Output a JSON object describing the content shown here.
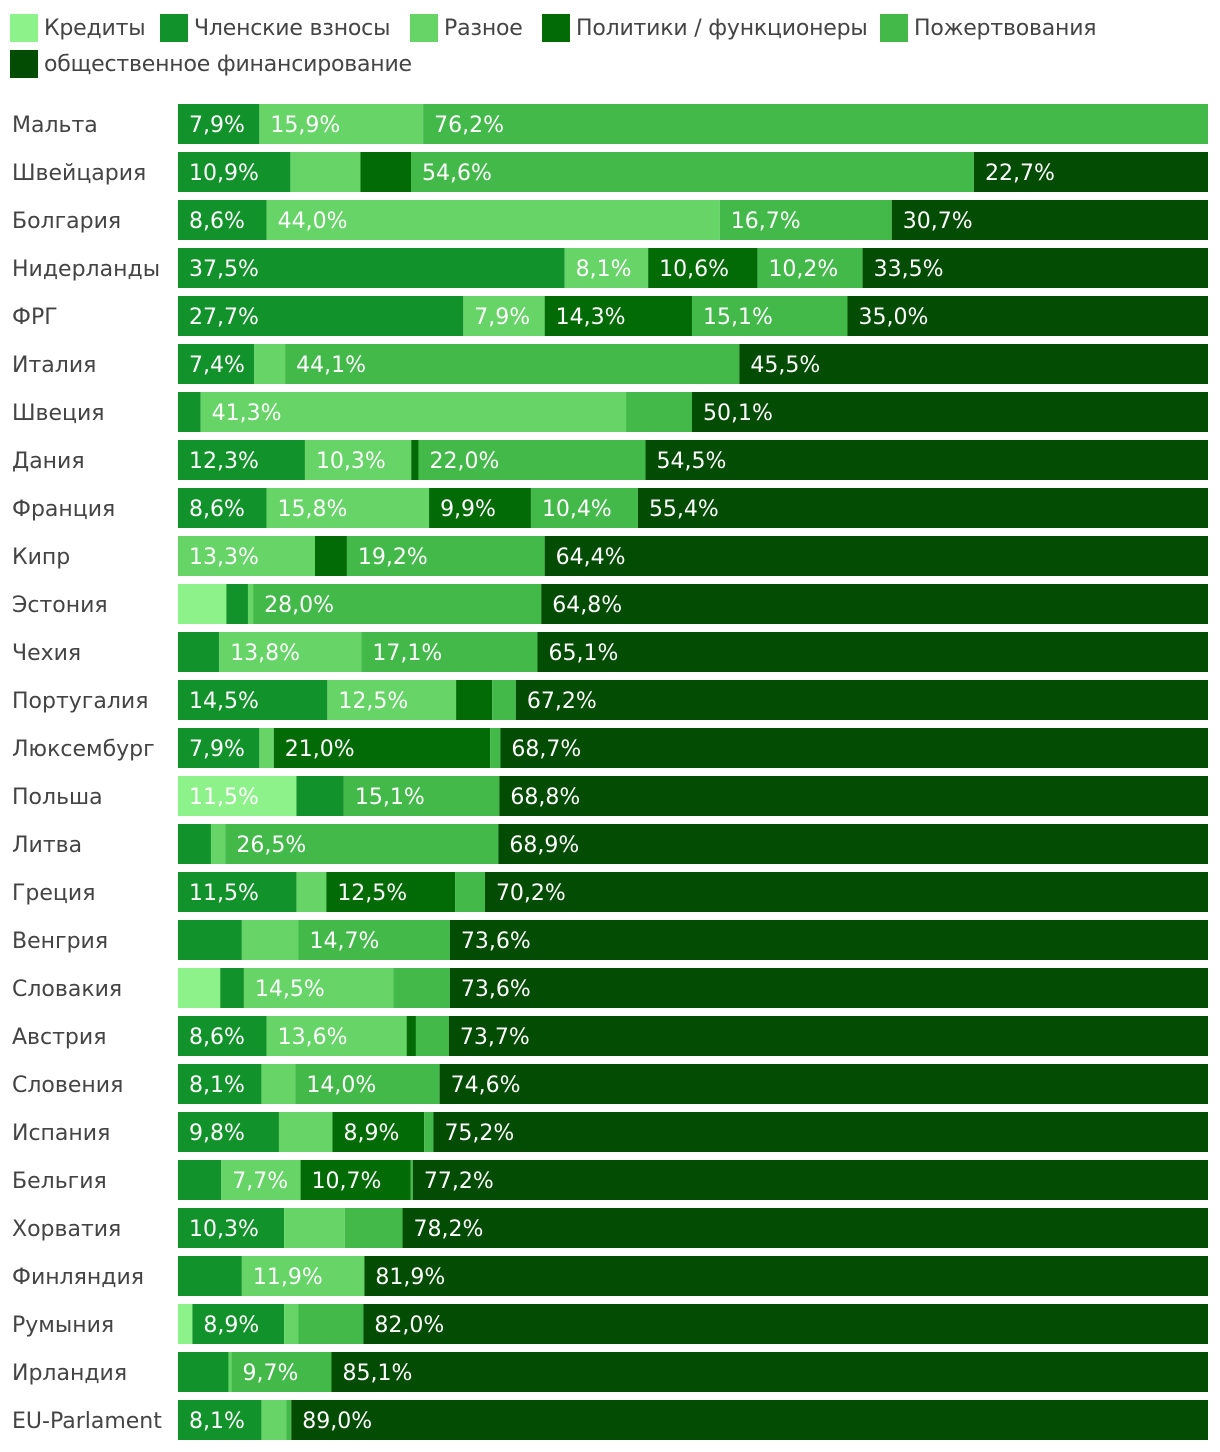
{
  "chart_data": {
    "type": "bar",
    "orientation": "horizontal",
    "stacked": true,
    "unit": "%",
    "legend_position": "top-left",
    "grid": false,
    "xlim": [
      0,
      100
    ],
    "series": [
      {
        "name": "Кредиты",
        "color": "#8ef28a"
      },
      {
        "name": "Членские взносы",
        "color": "#12922a"
      },
      {
        "name": "Разное",
        "color": "#66d466"
      },
      {
        "name": "Политики / функционеры",
        "color": "#036b06"
      },
      {
        "name": "Пожертвования",
        "color": "#43b94a"
      },
      {
        "name": "общественное финансирование",
        "color": "#034c03"
      }
    ],
    "rows": [
      {
        "country": "Мальта",
        "values": [
          0,
          7.9,
          15.9,
          0,
          76.2,
          0
        ],
        "labels": [
          "",
          "7,9%",
          "15,9%",
          "",
          "76,2%",
          ""
        ]
      },
      {
        "country": "Швейцария",
        "values": [
          0,
          10.9,
          6.8,
          4.9,
          54.6,
          22.7
        ],
        "labels": [
          "",
          "10,9%",
          "",
          "",
          "54,6%",
          "22,7%"
        ]
      },
      {
        "country": "Болгария",
        "values": [
          0,
          8.6,
          44.0,
          0,
          16.7,
          30.7
        ],
        "labels": [
          "",
          "8,6%",
          "44,0%",
          "",
          "16,7%",
          "30,7%"
        ]
      },
      {
        "country": "Нидерланды",
        "values": [
          0,
          37.5,
          8.1,
          10.6,
          10.2,
          33.5
        ],
        "labels": [
          "",
          "37,5%",
          "8,1%",
          "10,6%",
          "10,2%",
          "33,5%"
        ]
      },
      {
        "country": "ФРГ",
        "values": [
          0,
          27.7,
          7.9,
          14.3,
          15.1,
          35.0
        ],
        "labels": [
          "",
          "27,7%",
          "7,9%",
          "14,3%",
          "15,1%",
          "35,0%"
        ]
      },
      {
        "country": "Италия",
        "values": [
          0,
          7.4,
          3.0,
          0,
          44.1,
          45.5
        ],
        "labels": [
          "",
          "7,4%",
          "",
          "",
          "44,1%",
          "45,5%"
        ]
      },
      {
        "country": "Швеция",
        "values": [
          0,
          2.2,
          41.3,
          0,
          6.4,
          50.1
        ],
        "labels": [
          "",
          "",
          "41,3%",
          "",
          "",
          "50,1%"
        ]
      },
      {
        "country": "Дания",
        "values": [
          0,
          12.3,
          10.3,
          0.7,
          22.0,
          54.5
        ],
        "labels": [
          "",
          "12,3%",
          "10,3%",
          "",
          "22,0%",
          "54,5%"
        ]
      },
      {
        "country": "Франция",
        "values": [
          0,
          8.6,
          15.8,
          9.9,
          10.4,
          55.4
        ],
        "labels": [
          "",
          "8,6%",
          "15,8%",
          "9,9%",
          "10,4%",
          "55,4%"
        ]
      },
      {
        "country": "Кипр",
        "values": [
          0,
          0,
          13.3,
          3.1,
          19.2,
          64.4
        ],
        "labels": [
          "",
          "",
          "13,3%",
          "",
          "19,2%",
          "64,4%"
        ]
      },
      {
        "country": "Эстония",
        "values": [
          4.7,
          2.1,
          0.5,
          0,
          28.0,
          64.8
        ],
        "labels": [
          "",
          "",
          "",
          "",
          "28,0%",
          "64,8%"
        ]
      },
      {
        "country": "Чехия",
        "values": [
          0,
          4.0,
          13.8,
          0,
          17.1,
          65.1
        ],
        "labels": [
          "",
          "",
          "13,8%",
          "",
          "17,1%",
          "65,1%"
        ]
      },
      {
        "country": "Португалия",
        "values": [
          0,
          14.5,
          12.5,
          3.5,
          2.3,
          67.2
        ],
        "labels": [
          "",
          "14,5%",
          "12,5%",
          "",
          "",
          "67,2%"
        ]
      },
      {
        "country": "Люксембург",
        "values": [
          0,
          7.9,
          1.4,
          21.0,
          1.0,
          68.7
        ],
        "labels": [
          "",
          "7,9%",
          "",
          "21,0%",
          "",
          "68,7%"
        ]
      },
      {
        "country": "Польша",
        "values": [
          11.5,
          4.6,
          0,
          0,
          15.1,
          68.8
        ],
        "labels": [
          "11,5%",
          "",
          "",
          "",
          "15,1%",
          "68,8%"
        ]
      },
      {
        "country": "Литва",
        "values": [
          0,
          3.2,
          1.4,
          0,
          26.5,
          68.9
        ],
        "labels": [
          "",
          "",
          "",
          "",
          "26,5%",
          "68,9%"
        ]
      },
      {
        "country": "Греция",
        "values": [
          0,
          11.5,
          2.9,
          12.5,
          2.9,
          70.2
        ],
        "labels": [
          "",
          "11,5%",
          "",
          "12,5%",
          "",
          "70,2%"
        ]
      },
      {
        "country": "Венгрия",
        "values": [
          0,
          6.2,
          5.5,
          0,
          14.7,
          73.6
        ],
        "labels": [
          "",
          "",
          "",
          "",
          "14,7%",
          "73,6%"
        ]
      },
      {
        "country": "Словакия",
        "values": [
          4.1,
          2.3,
          14.5,
          0,
          5.5,
          73.6
        ],
        "labels": [
          "",
          "",
          "14,5%",
          "",
          "",
          "73,6%"
        ]
      },
      {
        "country": "Австрия",
        "values": [
          0,
          8.6,
          13.6,
          0.9,
          3.2,
          73.7
        ],
        "labels": [
          "",
          "8,6%",
          "13,6%",
          "",
          "",
          "73,7%"
        ]
      },
      {
        "country": "Словения",
        "values": [
          0,
          8.1,
          3.3,
          0,
          14.0,
          74.6
        ],
        "labels": [
          "",
          "8,1%",
          "",
          "",
          "14,0%",
          "74,6%"
        ]
      },
      {
        "country": "Испания",
        "values": [
          0,
          9.8,
          5.2,
          8.9,
          0.9,
          75.2
        ],
        "labels": [
          "",
          "9,8%",
          "",
          "8,9%",
          "",
          "75,2%"
        ]
      },
      {
        "country": "Бельгия",
        "values": [
          0,
          4.2,
          7.7,
          10.7,
          0.2,
          77.2
        ],
        "labels": [
          "",
          "",
          "7,7%",
          "10,7%",
          "",
          "77,2%"
        ]
      },
      {
        "country": "Хорватия",
        "values": [
          0,
          10.3,
          5.9,
          0,
          5.6,
          78.2
        ],
        "labels": [
          "",
          "10,3%",
          "",
          "",
          "",
          "78,2%"
        ]
      },
      {
        "country": "Финляндия",
        "values": [
          0,
          6.2,
          11.9,
          0,
          0,
          81.9
        ],
        "labels": [
          "",
          "",
          "11,9%",
          "",
          "",
          "81,9%"
        ]
      },
      {
        "country": "Румыния",
        "values": [
          1.4,
          8.9,
          1.4,
          0,
          6.3,
          82.0
        ],
        "labels": [
          "",
          "8,9%",
          "",
          "",
          "",
          "82,0%"
        ]
      },
      {
        "country": "Ирландия",
        "values": [
          0,
          4.9,
          0.3,
          0,
          9.7,
          85.1
        ],
        "labels": [
          "",
          "",
          "",
          "",
          "9,7%",
          "85,1%"
        ]
      },
      {
        "country": "EU-Parlament",
        "values": [
          0,
          8.1,
          2.4,
          0,
          0.5,
          89.0
        ],
        "labels": [
          "",
          "8,1%",
          "",
          "",
          "",
          "89,0%"
        ]
      }
    ]
  }
}
